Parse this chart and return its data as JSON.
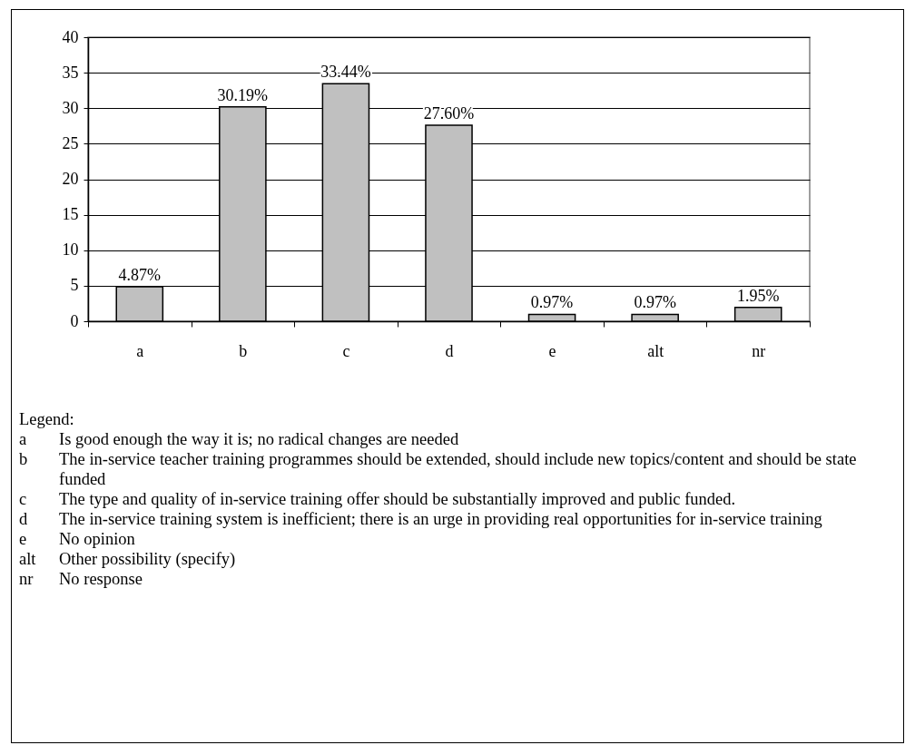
{
  "chart_data": {
    "type": "bar",
    "categories": [
      "a",
      "b",
      "c",
      "d",
      "e",
      "alt",
      "nr"
    ],
    "values": [
      4.87,
      30.19,
      33.44,
      27.6,
      0.97,
      0.97,
      1.95
    ],
    "value_labels": [
      "4.87%",
      "30.19%",
      "33.44%",
      "27.60%",
      "0.97%",
      "0.97%",
      "1.95%"
    ],
    "color": "#c0c0c0",
    "ylim": [
      0,
      40
    ],
    "yticks": [
      0,
      5,
      10,
      15,
      20,
      25,
      30,
      35,
      40
    ],
    "grid": "y",
    "annotations": [
      "Legend:",
      "a\tIs good enough the way it is; no radical changes are needed",
      "b\tThe in-service teacher training programmes should be extended, should include new topics/content and should be state funded",
      "c\tThe type and quality of in-service training offer should be substantially improved and public funded.",
      "d\tThe in-service training system is inefficient; there is an urge in providing real opportunities for in-service training",
      "e\tNo opinion",
      "alt\tOther possibility (specify)",
      "nr\tNo response"
    ]
  }
}
